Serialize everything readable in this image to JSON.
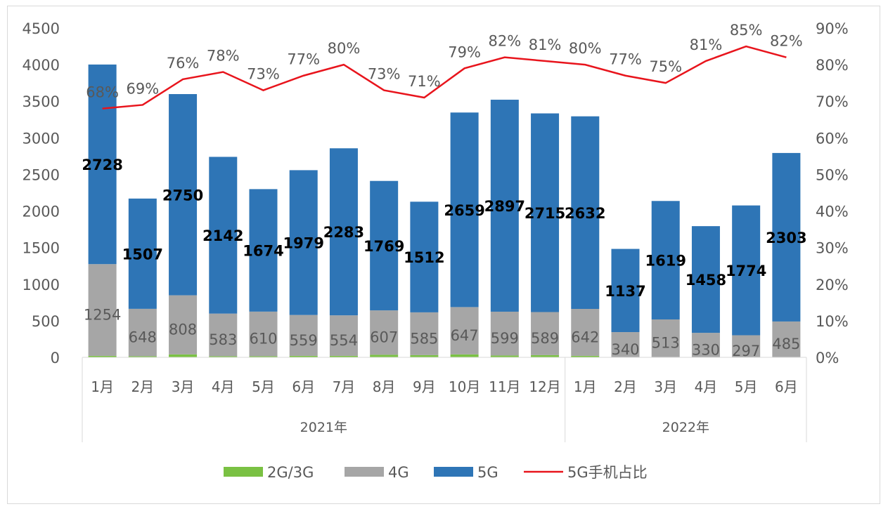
{
  "chart_data": {
    "type": "bar",
    "stacked": true,
    "groups": [
      {
        "label": "2021年",
        "categories": [
          "1月",
          "2月",
          "3月",
          "4月",
          "5月",
          "6月",
          "7月",
          "8月",
          "9月",
          "10月",
          "11月",
          "12月"
        ]
      },
      {
        "label": "2022年",
        "categories": [
          "1月",
          "2月",
          "3月",
          "4月",
          "5月",
          "6月"
        ]
      }
    ],
    "categories": [
      "1月",
      "2月",
      "3月",
      "4月",
      "5月",
      "6月",
      "7月",
      "8月",
      "9月",
      "10月",
      "11月",
      "12月",
      "1月",
      "2月",
      "3月",
      "4月",
      "5月",
      "6月"
    ],
    "series": [
      {
        "name": "2G/3G",
        "color": "#7ac143",
        "values": [
          20,
          15,
          40,
          15,
          15,
          20,
          20,
          35,
          30,
          40,
          25,
          30,
          20,
          5,
          5,
          5,
          5,
          5
        ]
      },
      {
        "name": "4G",
        "color": "#a6a6a6",
        "values": [
          1254,
          648,
          808,
          583,
          610,
          559,
          554,
          607,
          585,
          647,
          599,
          589,
          642,
          340,
          513,
          330,
          297,
          485
        ]
      },
      {
        "name": "5G",
        "color": "#2e75b6",
        "values": [
          2728,
          1507,
          2750,
          2142,
          1674,
          1979,
          2283,
          1769,
          1512,
          2659,
          2897,
          2715,
          2632,
          1137,
          1619,
          1458,
          1774,
          2303
        ]
      },
      {
        "name": "5G手机占比",
        "type": "line",
        "axis": "right",
        "color": "#e8141c",
        "values": [
          68,
          69,
          76,
          78,
          73,
          77,
          80,
          73,
          71,
          79,
          82,
          81,
          80,
          77,
          75,
          81,
          85,
          82
        ]
      }
    ],
    "y_left": {
      "range": [
        0,
        4500
      ],
      "ticks": [
        0,
        500,
        1000,
        1500,
        2000,
        2500,
        3000,
        3500,
        4000,
        4500
      ]
    },
    "y_right": {
      "range": [
        0,
        90
      ],
      "ticks": [
        "0%",
        "10%",
        "20%",
        "30%",
        "40%",
        "50%",
        "60%",
        "70%",
        "80%",
        "90%"
      ]
    },
    "legend": "bottom",
    "grid": false
  }
}
